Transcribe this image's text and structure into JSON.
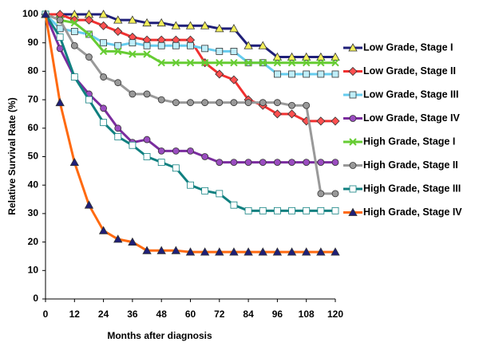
{
  "chart_data": {
    "type": "line",
    "x_label": "Months after diagnosis",
    "y_label": "Relative Survival Rate (%)",
    "x": [
      0,
      6,
      12,
      18,
      24,
      30,
      36,
      42,
      48,
      54,
      60,
      66,
      72,
      78,
      84,
      90,
      96,
      102,
      108,
      114,
      120
    ],
    "xlim": [
      0,
      120
    ],
    "xticks": [
      0,
      12,
      24,
      36,
      48,
      60,
      72,
      84,
      96,
      108,
      120
    ],
    "ylim": [
      0,
      100
    ],
    "yticks": [
      0,
      10,
      20,
      30,
      40,
      50,
      60,
      70,
      80,
      90,
      100
    ],
    "grid": false,
    "legend": "right",
    "series": [
      {
        "name": "Low Grade, Stage I",
        "color": "#1f1f78",
        "marker": "triangle",
        "marker_fill": "#f2ee5a",
        "values": [
          100,
          100,
          100,
          100,
          100,
          98,
          98,
          97,
          97,
          96,
          96,
          96,
          95,
          95,
          89,
          89,
          85,
          85,
          85,
          85,
          85
        ]
      },
      {
        "name": "Low Grade, Stage II",
        "color": "#f03030",
        "marker": "diamond",
        "marker_fill": "#ff5050",
        "values": [
          100,
          100,
          98,
          98,
          96,
          94,
          92,
          91,
          91,
          91,
          91,
          83,
          79,
          77,
          70,
          68,
          65,
          65,
          62.5,
          62.5,
          62.5
        ]
      },
      {
        "name": "Low Grade, Stage III",
        "color": "#66ccee",
        "marker": "square",
        "marker_fill": "#bfeefa",
        "values": [
          100,
          95,
          94,
          93,
          90,
          89,
          90,
          89,
          89,
          89,
          89,
          88,
          87,
          87,
          83,
          83,
          79,
          79,
          79,
          79,
          79
        ]
      },
      {
        "name": "Low Grade, Stage IV",
        "color": "#7a2c9e",
        "marker": "circle",
        "marker_fill": "#9a4cc0",
        "values": [
          100,
          88,
          78,
          72,
          67,
          60,
          55,
          56,
          52,
          52,
          52,
          50,
          48,
          48,
          48,
          48,
          48,
          48,
          48,
          48,
          48
        ]
      },
      {
        "name": "High Grade, Stage I",
        "color": "#66cc33",
        "marker": "x",
        "marker_fill": "#66cc33",
        "values": [
          100,
          98,
          97,
          93,
          87,
          87,
          86,
          86,
          83,
          83,
          83,
          83,
          83,
          83,
          83,
          83,
          83,
          83,
          83,
          83,
          83
        ]
      },
      {
        "name": "High Grade, Stage II",
        "color": "#999999",
        "marker": "circle",
        "marker_fill": "#999999",
        "values": [
          100,
          98,
          89,
          85,
          78,
          76,
          72,
          72,
          70,
          69,
          69,
          69,
          69,
          69,
          69,
          69,
          69,
          68,
          68,
          37,
          37
        ]
      },
      {
        "name": "High Grade, Stage III",
        "color": "#108080",
        "marker": "square",
        "marker_fill": "#ffffff",
        "values": [
          100,
          92,
          78,
          70,
          62,
          57,
          54,
          50,
          48,
          46,
          40,
          38,
          37,
          33,
          31,
          31,
          31,
          31,
          31,
          31,
          31
        ]
      },
      {
        "name": "High Grade, Stage IV",
        "color": "#ff6a10",
        "marker": "triangle",
        "marker_fill": "#1f1f78",
        "values": [
          100,
          69,
          48,
          33,
          24,
          21,
          20,
          17,
          17,
          17,
          16.5,
          16.5,
          16.5,
          16.5,
          16.5,
          16.5,
          16.5,
          16.5,
          16.5,
          16.5,
          16.5
        ]
      }
    ]
  }
}
